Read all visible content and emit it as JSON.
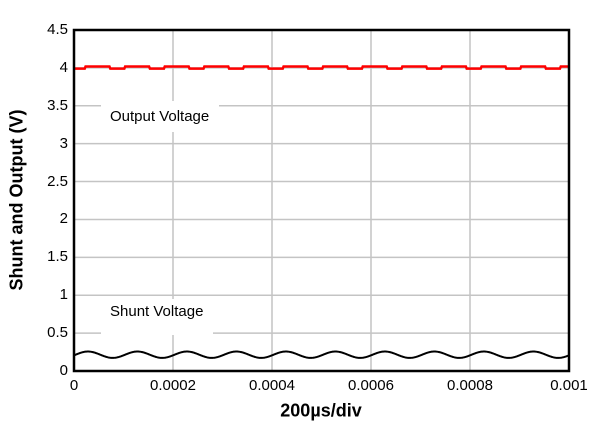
{
  "chart": {
    "y_axis": {
      "label": "Shunt and Output (V)",
      "ticks": [
        "4.5",
        "4",
        "3.5",
        "3",
        "2.5",
        "2",
        "1.5",
        "1",
        "0.5",
        "0"
      ]
    },
    "x_axis": {
      "label": "200µs/div",
      "ticks": [
        "0",
        "0.0002",
        "0.0004",
        "0.0006",
        "0.0008",
        "0.001"
      ]
    },
    "colors": {
      "output_trace": "#ff0000",
      "shunt_trace": "#000000",
      "grid": "#c4c4c4",
      "frame": "#000000",
      "text": "#000000"
    }
  },
  "chart_data": {
    "type": "line",
    "title": "",
    "xlabel": "200µs/div",
    "ylabel": "Shunt and Output (V)",
    "xlim": [
      0,
      0.001
    ],
    "ylim": [
      0,
      4.5
    ],
    "x_tick_step": 0.0002,
    "y_tick_step": 0.5,
    "grid": true,
    "legend": "none",
    "series": [
      {
        "name": "Output Voltage",
        "color": "#ff0000",
        "shape": "square_ripple",
        "mean_v": 4.0,
        "high_v": 4.018,
        "low_v": 3.99,
        "period_s": 8e-05,
        "duty_low": 0.38,
        "phase_frac": 0.1
      },
      {
        "name": "Shunt Voltage",
        "color": "#000000",
        "shape": "sine",
        "mean_v": 0.215,
        "amplitude_v": 0.042,
        "period_s": 0.0001,
        "phase_rad": -0.2
      }
    ],
    "annotations": [
      {
        "text": "Output Voltage",
        "x_s": 8e-05,
        "y_v": 3.3
      },
      {
        "text": "Shunt Voltage",
        "x_s": 8e-05,
        "y_v": 0.68
      }
    ]
  }
}
